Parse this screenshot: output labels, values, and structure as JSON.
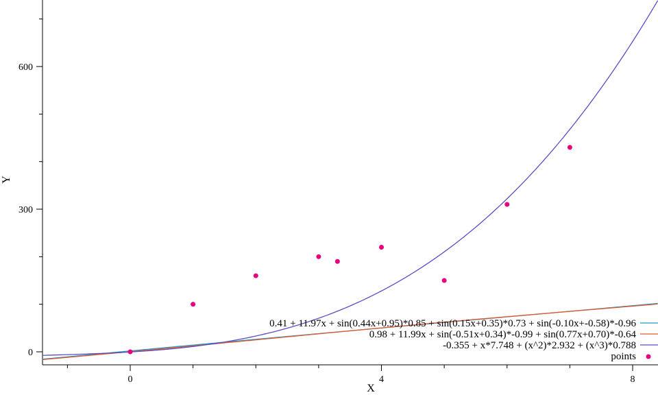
{
  "chart_data": {
    "type": "line",
    "title": "",
    "xlabel": "X",
    "ylabel": "Y",
    "xlim": [
      -1.4,
      8.4
    ],
    "ylim": [
      -25,
      740
    ],
    "xticks": [
      0,
      4,
      8
    ],
    "xminor": [
      -1,
      1,
      2,
      3,
      5,
      6,
      7
    ],
    "yticks": [
      0,
      300,
      600
    ],
    "yminor": [
      100,
      200,
      400,
      500,
      700
    ],
    "xtick_labels": [
      "0",
      "4",
      "8"
    ],
    "ytick_labels": [
      "0",
      "300",
      "600"
    ],
    "grid": false,
    "legend_position": "bottom-right",
    "series": [
      {
        "name": "0.41 + 11.97x + sin(0.44x+0.95)*0.85 + sin(0.15x+0.35)*0.73 + sin(-0.10x+-0.58)*-0.96",
        "kind": "line",
        "color": "#1f9bc4",
        "model": "fit1",
        "x_range": [
          -1.4,
          8.4
        ]
      },
      {
        "name": "0.98 + 11.99x + sin(-0.51x+0.34)*-0.99 + sin(0.77x+0.70)*-0.64",
        "kind": "line",
        "color": "#e4572e",
        "model": "fit2",
        "x_range": [
          -1.4,
          8.4
        ]
      },
      {
        "name": "-0.355 + x*7.748 + (x^2)*2.932 + (x^3)*0.788",
        "kind": "line",
        "color": "#5b4cc4",
        "model": "fit3",
        "x_range": [
          -1.4,
          8.4
        ]
      },
      {
        "name": "points",
        "kind": "scatter",
        "color": "#e6007e",
        "points": [
          [
            0,
            0
          ],
          [
            1,
            100
          ],
          [
            2,
            160
          ],
          [
            3,
            200
          ],
          [
            3.3,
            190
          ],
          [
            4,
            220
          ],
          [
            5,
            150
          ],
          [
            6,
            310
          ],
          [
            7,
            430
          ]
        ]
      }
    ]
  }
}
